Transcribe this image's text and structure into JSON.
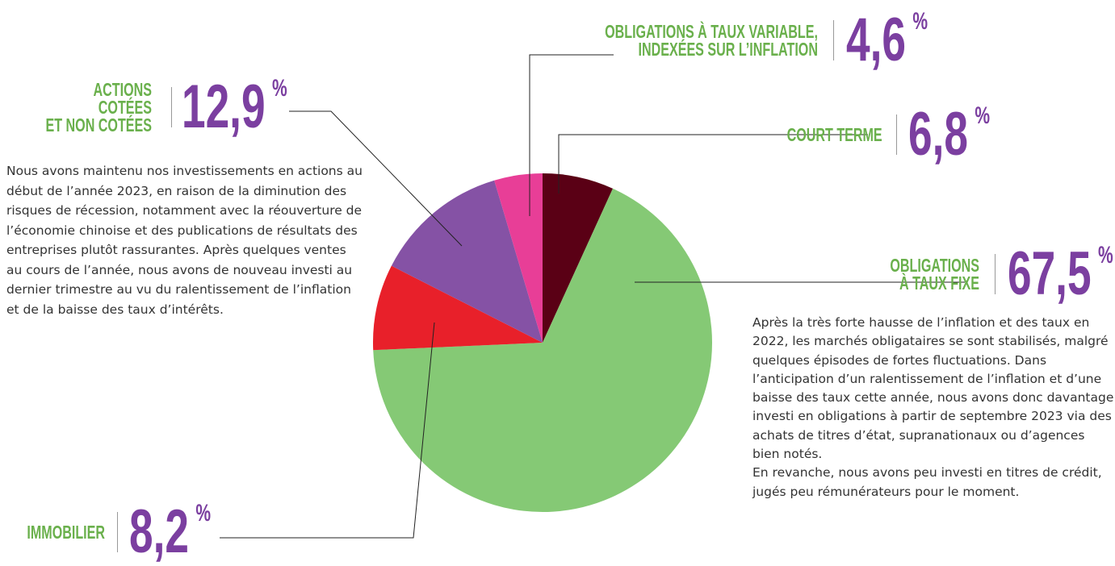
{
  "chart_data": {
    "type": "pie",
    "categories": [
      "COURT TERME",
      "OBLIGATIONS\nÀ TAUX FIXE",
      "IMMOBILIER",
      "ACTIONS COTÉES\nET NON COTÉES",
      "OBLIGATIONS À TAUX VARIABLE,\nINDEXÉES SUR L’INFLATION"
    ],
    "values": [
      6.8,
      67.5,
      8.2,
      12.9,
      4.6
    ],
    "value_labels": [
      "6,8",
      "67,5",
      "8,2",
      "12,9",
      "4,6"
    ],
    "value_suffix": "%",
    "colors": [
      "#5a0015",
      "#85c975",
      "#e8202a",
      "#8552a5",
      "#e83e97"
    ],
    "annotations": [
      "Nous avons maintenu nos investissements en actions au début de l’année 2023, en raison de la diminution des risques de récession, notamment avec la réouverture de l’économie chinoise et des publications de résultats des entreprises plutôt rassurantes. Après quelques ventes au cours de l’année, nous avons de nouveau investi au dernier trimestre au vu du ralentissement de l’inflation et de la baisse des taux d’intérêts.",
      "Après la très forte hausse de l’inflation et des taux en 2022, les marchés obligataires se sont stabilisés, malgré quelques épisodes de fortes fluctuations. Dans l’anticipation d’un ralentissement de l’inflation et d’une baisse des taux cette année, nous avons donc davantage investi en obligations à partir de septembre 2023 via des achats de titres d’état, supranationaux ou d’agences bien notés.\nEn revanche, nous avons peu investi en titres de crédit, jugés peu rémunérateurs pour le moment."
    ]
  }
}
